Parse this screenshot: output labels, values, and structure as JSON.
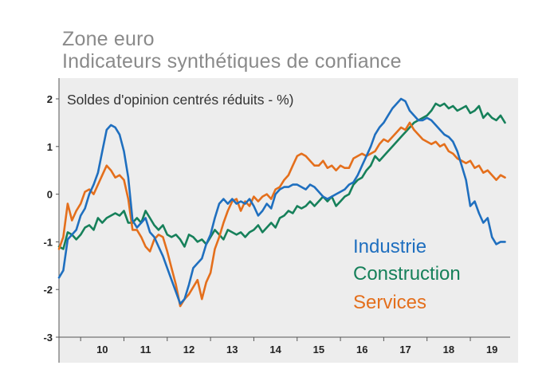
{
  "title": "Zone euro",
  "subtitle": "Indicateurs synthétiques de confiance",
  "chart_data": {
    "type": "line",
    "ylabel": "Soldes d'opinion centrés réduits - %)",
    "ylim": [
      -3,
      2
    ],
    "yticks": [
      "2",
      "1",
      "0",
      "-1",
      "-2",
      "-3"
    ],
    "xticks": [
      "10",
      "11",
      "12",
      "13",
      "14",
      "15",
      "16",
      "17",
      "18",
      "19"
    ],
    "xlim": [
      2009.5,
      2019.92
    ],
    "legend": "inside-right",
    "series": [
      {
        "name": "Industrie",
        "color": "#1f6fbf",
        "x": [
          2009.5,
          2009.6,
          2009.7,
          2009.8,
          2009.9,
          2010.0,
          2010.1,
          2010.2,
          2010.3,
          2010.4,
          2010.5,
          2010.6,
          2010.7,
          2010.8,
          2010.9,
          2011.0,
          2011.1,
          2011.2,
          2011.3,
          2011.4,
          2011.5,
          2011.6,
          2011.7,
          2011.8,
          2011.9,
          2012.0,
          2012.1,
          2012.2,
          2012.3,
          2012.4,
          2012.5,
          2012.6,
          2012.7,
          2012.8,
          2012.9,
          2013.0,
          2013.1,
          2013.2,
          2013.3,
          2013.4,
          2013.5,
          2013.6,
          2013.7,
          2013.8,
          2013.9,
          2014.0,
          2014.1,
          2014.2,
          2014.3,
          2014.4,
          2014.5,
          2014.6,
          2014.7,
          2014.8,
          2014.9,
          2015.0,
          2015.1,
          2015.2,
          2015.3,
          2015.4,
          2015.5,
          2015.6,
          2015.7,
          2015.8,
          2015.9,
          2016.0,
          2016.1,
          2016.2,
          2016.3,
          2016.4,
          2016.5,
          2016.6,
          2016.7,
          2016.8,
          2016.9,
          2017.0,
          2017.1,
          2017.2,
          2017.3,
          2017.4,
          2017.5,
          2017.6,
          2017.7,
          2017.8,
          2017.9,
          2018.0,
          2018.1,
          2018.2,
          2018.3,
          2018.4,
          2018.5,
          2018.6,
          2018.7,
          2018.8,
          2018.9,
          2019.0,
          2019.1,
          2019.2,
          2019.3,
          2019.4,
          2019.5,
          2019.6,
          2019.7,
          2019.8
        ],
        "values": [
          -1.75,
          -1.6,
          -0.95,
          -0.85,
          -0.75,
          -0.45,
          -0.3,
          0.0,
          0.2,
          0.45,
          0.9,
          1.35,
          1.45,
          1.4,
          1.25,
          0.9,
          0.35,
          -0.55,
          -0.7,
          -0.6,
          -0.5,
          -0.8,
          -0.9,
          -1.1,
          -1.3,
          -1.55,
          -1.8,
          -2.05,
          -2.3,
          -2.2,
          -1.9,
          -1.55,
          -1.45,
          -1.35,
          -1.05,
          -0.85,
          -0.5,
          -0.2,
          -0.1,
          -0.2,
          -0.1,
          -0.2,
          -0.15,
          -0.2,
          -0.1,
          -0.25,
          -0.45,
          -0.35,
          -0.2,
          -0.3,
          0.0,
          0.1,
          0.15,
          0.15,
          0.2,
          0.2,
          0.15,
          0.1,
          0.2,
          0.15,
          0.05,
          -0.05,
          -0.1,
          -0.05,
          0.0,
          0.05,
          0.1,
          0.2,
          0.25,
          0.4,
          0.6,
          0.8,
          1.0,
          1.25,
          1.4,
          1.5,
          1.65,
          1.8,
          1.9,
          2.0,
          1.95,
          1.75,
          1.65,
          1.55,
          1.55,
          1.6,
          1.55,
          1.45,
          1.35,
          1.25,
          1.2,
          1.1,
          0.9,
          0.6,
          0.3,
          -0.25,
          -0.15,
          -0.4,
          -0.6,
          -0.5,
          -0.9,
          -1.05,
          -1.0,
          -1.0
        ]
      },
      {
        "name": "Construction",
        "color": "#16805a",
        "x": [
          2009.5,
          2009.6,
          2009.7,
          2009.8,
          2009.9,
          2010.0,
          2010.1,
          2010.2,
          2010.3,
          2010.4,
          2010.5,
          2010.6,
          2010.7,
          2010.8,
          2010.9,
          2011.0,
          2011.1,
          2011.2,
          2011.3,
          2011.4,
          2011.5,
          2011.6,
          2011.7,
          2011.8,
          2011.9,
          2012.0,
          2012.1,
          2012.2,
          2012.3,
          2012.4,
          2012.5,
          2012.6,
          2012.7,
          2012.8,
          2012.9,
          2013.0,
          2013.1,
          2013.2,
          2013.3,
          2013.4,
          2013.5,
          2013.6,
          2013.7,
          2013.8,
          2013.9,
          2014.0,
          2014.1,
          2014.2,
          2014.3,
          2014.4,
          2014.5,
          2014.6,
          2014.7,
          2014.8,
          2014.9,
          2015.0,
          2015.1,
          2015.2,
          2015.3,
          2015.4,
          2015.5,
          2015.6,
          2015.7,
          2015.8,
          2015.9,
          2016.0,
          2016.1,
          2016.2,
          2016.3,
          2016.4,
          2016.5,
          2016.6,
          2016.7,
          2016.8,
          2016.9,
          2017.0,
          2017.1,
          2017.2,
          2017.3,
          2017.4,
          2017.5,
          2017.6,
          2017.7,
          2017.8,
          2017.9,
          2018.0,
          2018.1,
          2018.2,
          2018.3,
          2018.4,
          2018.5,
          2018.6,
          2018.7,
          2018.8,
          2018.9,
          2019.0,
          2019.1,
          2019.2,
          2019.3,
          2019.4,
          2019.5,
          2019.6,
          2019.7,
          2019.8
        ],
        "values": [
          -1.1,
          -1.15,
          -0.8,
          -0.85,
          -0.95,
          -0.85,
          -0.7,
          -0.65,
          -0.75,
          -0.5,
          -0.6,
          -0.5,
          -0.45,
          -0.4,
          -0.45,
          -0.35,
          -0.6,
          -0.6,
          -0.5,
          -0.6,
          -0.35,
          -0.5,
          -0.65,
          -0.75,
          -0.65,
          -0.85,
          -0.9,
          -0.85,
          -0.95,
          -1.1,
          -0.85,
          -0.9,
          -1.0,
          -0.95,
          -1.05,
          -0.9,
          -0.75,
          -0.85,
          -0.95,
          -0.75,
          -0.8,
          -0.85,
          -0.8,
          -0.9,
          -0.8,
          -0.75,
          -0.65,
          -0.8,
          -0.7,
          -0.6,
          -0.7,
          -0.5,
          -0.45,
          -0.35,
          -0.4,
          -0.25,
          -0.3,
          -0.25,
          -0.15,
          -0.25,
          -0.15,
          -0.05,
          -0.15,
          -0.05,
          -0.25,
          -0.15,
          -0.05,
          0.0,
          0.2,
          0.3,
          0.35,
          0.5,
          0.6,
          0.8,
          0.7,
          0.8,
          0.9,
          1.0,
          1.1,
          1.2,
          1.3,
          1.4,
          1.5,
          1.55,
          1.6,
          1.65,
          1.75,
          1.9,
          1.85,
          1.9,
          1.8,
          1.85,
          1.75,
          1.8,
          1.85,
          1.7,
          1.75,
          1.85,
          1.6,
          1.7,
          1.6,
          1.55,
          1.65,
          1.5
        ]
      },
      {
        "name": "Services",
        "color": "#e46f1c",
        "x": [
          2009.5,
          2009.6,
          2009.7,
          2009.8,
          2009.9,
          2010.0,
          2010.1,
          2010.2,
          2010.3,
          2010.4,
          2010.5,
          2010.6,
          2010.7,
          2010.8,
          2010.9,
          2011.0,
          2011.1,
          2011.2,
          2011.3,
          2011.4,
          2011.5,
          2011.6,
          2011.7,
          2011.8,
          2011.9,
          2012.0,
          2012.1,
          2012.2,
          2012.3,
          2012.4,
          2012.5,
          2012.6,
          2012.7,
          2012.8,
          2012.9,
          2013.0,
          2013.1,
          2013.2,
          2013.3,
          2013.4,
          2013.5,
          2013.6,
          2013.7,
          2013.8,
          2013.9,
          2014.0,
          2014.1,
          2014.2,
          2014.3,
          2014.4,
          2014.5,
          2014.6,
          2014.7,
          2014.8,
          2014.9,
          2015.0,
          2015.1,
          2015.2,
          2015.3,
          2015.4,
          2015.5,
          2015.6,
          2015.7,
          2015.8,
          2015.9,
          2016.0,
          2016.1,
          2016.2,
          2016.3,
          2016.4,
          2016.5,
          2016.6,
          2016.7,
          2016.8,
          2016.9,
          2017.0,
          2017.1,
          2017.2,
          2017.3,
          2017.4,
          2017.5,
          2017.6,
          2017.7,
          2017.8,
          2017.9,
          2018.0,
          2018.1,
          2018.2,
          2018.3,
          2018.4,
          2018.5,
          2018.6,
          2018.7,
          2018.8,
          2018.9,
          2019.0,
          2019.1,
          2019.2,
          2019.3,
          2019.4,
          2019.5,
          2019.6,
          2019.7,
          2019.8
        ],
        "values": [
          -1.15,
          -0.9,
          -0.2,
          -0.55,
          -0.35,
          -0.2,
          0.05,
          0.1,
          0.0,
          0.2,
          0.4,
          0.6,
          0.5,
          0.35,
          0.4,
          0.3,
          -0.1,
          -0.75,
          -0.75,
          -0.9,
          -1.1,
          -1.2,
          -0.95,
          -0.85,
          -0.9,
          -1.2,
          -1.55,
          -1.9,
          -2.35,
          -2.2,
          -2.1,
          -1.95,
          -1.8,
          -2.2,
          -1.85,
          -1.65,
          -1.15,
          -0.9,
          -0.6,
          -0.35,
          -0.15,
          -0.1,
          -0.35,
          -0.15,
          -0.25,
          -0.05,
          -0.15,
          -0.05,
          0.0,
          -0.1,
          0.1,
          0.15,
          0.3,
          0.4,
          0.6,
          0.8,
          0.85,
          0.8,
          0.7,
          0.6,
          0.6,
          0.7,
          0.55,
          0.6,
          0.5,
          0.6,
          0.55,
          0.55,
          0.75,
          0.8,
          0.85,
          0.8,
          0.85,
          0.9,
          1.05,
          1.15,
          1.1,
          1.2,
          1.3,
          1.4,
          1.35,
          1.5,
          1.35,
          1.25,
          1.15,
          1.1,
          1.05,
          1.1,
          1.0,
          1.05,
          0.9,
          0.85,
          0.75,
          0.7,
          0.65,
          0.7,
          0.55,
          0.6,
          0.45,
          0.5,
          0.4,
          0.3,
          0.4,
          0.35
        ]
      }
    ]
  },
  "legend_labels": [
    "Industrie",
    "Construction",
    "Services"
  ]
}
